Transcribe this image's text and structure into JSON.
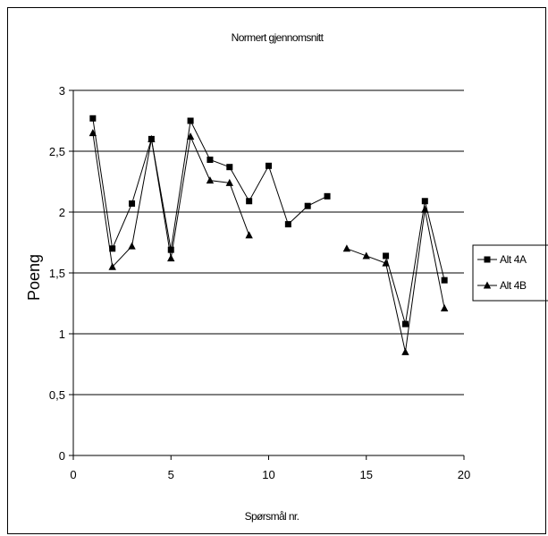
{
  "chart_data": {
    "type": "line",
    "title": "Normert gjennomsnitt",
    "xlabel": "Spørsmål nr.",
    "ylabel": "Poeng",
    "xlim": [
      0,
      20
    ],
    "ylim": [
      0,
      3
    ],
    "x_ticks": [
      "0",
      "5",
      "10",
      "15",
      "20"
    ],
    "y_ticks": [
      "0",
      "0,5",
      "1",
      "1,5",
      "2",
      "2,5",
      "3"
    ],
    "grid": "horizontal",
    "legend": "right",
    "series": [
      {
        "name": "Alt 4A",
        "marker": "square",
        "color": "#000000",
        "points": [
          [
            1,
            2.77
          ],
          [
            2,
            1.7
          ],
          [
            3,
            2.07
          ],
          [
            4,
            2.6
          ],
          [
            5,
            1.69
          ],
          [
            6,
            2.75
          ],
          [
            7,
            2.43
          ],
          [
            8,
            2.37
          ],
          [
            9,
            2.09
          ],
          [
            10,
            2.38
          ],
          [
            11,
            1.9
          ],
          [
            12,
            2.05
          ],
          [
            13,
            2.13
          ],
          [
            null,
            null
          ],
          [
            16,
            1.64
          ],
          [
            17,
            1.08
          ],
          [
            18,
            2.09
          ],
          [
            19,
            1.44
          ]
        ]
      },
      {
        "name": "Alt 4B",
        "marker": "triangle",
        "color": "#000000",
        "points": [
          [
            1,
            2.65
          ],
          [
            2,
            1.55
          ],
          [
            3,
            1.72
          ],
          [
            4,
            2.6
          ],
          [
            5,
            1.62
          ],
          [
            6,
            2.62
          ],
          [
            7,
            2.26
          ],
          [
            8,
            2.24
          ],
          [
            9,
            1.81
          ],
          [
            null,
            null
          ],
          [
            14,
            1.7
          ],
          [
            15,
            1.64
          ],
          [
            16,
            1.58
          ],
          [
            17,
            0.85
          ],
          [
            18,
            2.02
          ],
          [
            19,
            1.21
          ]
        ]
      }
    ]
  }
}
